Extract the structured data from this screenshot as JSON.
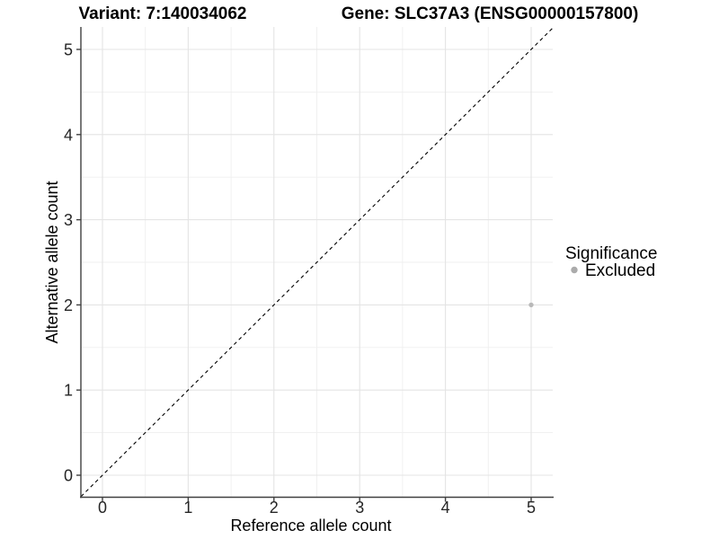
{
  "title": {
    "left": "Variant: 7:140034062",
    "right": "Gene: SLC37A3 (ENSG00000157800)"
  },
  "chart_data": {
    "type": "scatter",
    "xlabel": "Reference allele count",
    "ylabel": "Alternative allele count",
    "x_ticks": [
      0,
      1,
      2,
      3,
      4,
      5
    ],
    "y_ticks": [
      0,
      1,
      2,
      3,
      4,
      5
    ],
    "x_minor_ticks": [
      0.5,
      1.5,
      2.5,
      3.5,
      4.5
    ],
    "y_minor_ticks": [
      0.5,
      1.5,
      2.5,
      3.5,
      4.5
    ],
    "xlim": [
      -0.25,
      5.25
    ],
    "ylim": [
      -0.26,
      5.26
    ],
    "grid": true,
    "legend_position": "right",
    "legend": {
      "title": "Significance",
      "entries": [
        {
          "label": "Excluded",
          "color": "#ababab",
          "marker": "circle"
        }
      ]
    },
    "series": [
      {
        "name": "Excluded",
        "points": [
          {
            "x": 5,
            "y": 2
          }
        ]
      }
    ],
    "reference_line": {
      "slope": 1,
      "intercept": 0,
      "style": "dashed",
      "color": "#000000"
    },
    "colors": {
      "background": "#ffffff",
      "grid_major": "#e4e4e4",
      "grid_minor": "#efefef",
      "axis_line": "#404040",
      "tick_label": "#262626",
      "point": "#b9b9b9"
    }
  }
}
